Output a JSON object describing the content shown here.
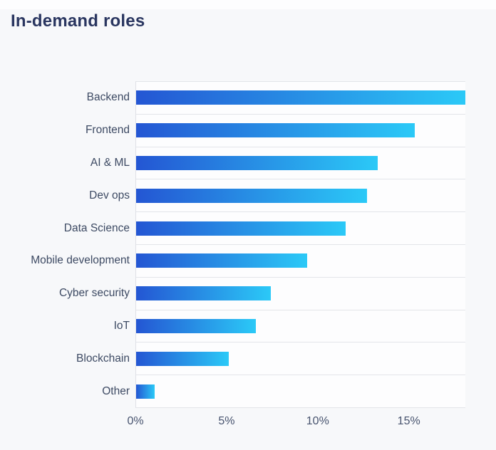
{
  "page": {
    "background_color": "#f7f8fa",
    "plot_background_color": "#fdfdfe",
    "gridline_color": "#e3e5e9"
  },
  "chart_data": {
    "type": "bar",
    "orientation": "horizontal",
    "title": "In-demand roles",
    "categories": [
      "Backend",
      "Frontend",
      "AI & ML",
      "Dev ops",
      "Data Science",
      "Mobile development",
      "Cyber security",
      "IoT",
      "Blockchain",
      "Other"
    ],
    "values": [
      18.1,
      15.3,
      13.3,
      12.7,
      11.5,
      9.4,
      7.4,
      6.6,
      5.1,
      1.0
    ],
    "unit": "%",
    "xlabel": "",
    "ylabel": "",
    "xlim": [
      0,
      18.1
    ],
    "x_ticks": [
      {
        "value": 0,
        "label": "0%"
      },
      {
        "value": 5,
        "label": "5%"
      },
      {
        "value": 10,
        "label": "10%"
      },
      {
        "value": 15,
        "label": "15%"
      }
    ],
    "grid": "horizontal-only",
    "legend": "none",
    "bar_gradient_left": "#2456d3",
    "bar_gradient_right": "#2bc9f7",
    "title_color": "#2a3660",
    "label_color": "#3d4a63",
    "tick_color": "#47536e"
  }
}
